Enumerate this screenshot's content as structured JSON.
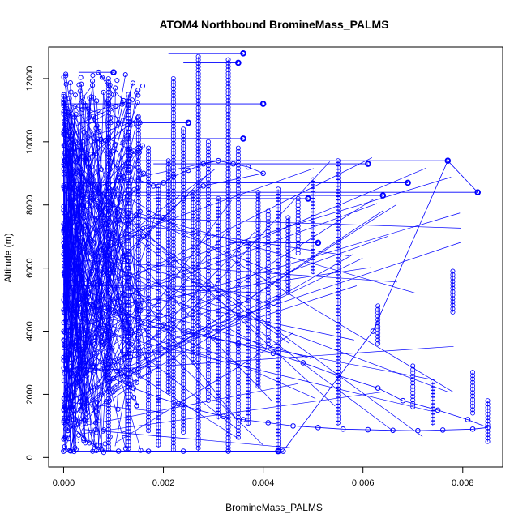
{
  "chart_data": {
    "type": "scatter",
    "title": "ATOM4 Northbound BromineMass_PALMS",
    "xlabel": "BromineMass_PALMS",
    "ylabel": "Altitude (m)",
    "xlim": [
      -0.0003,
      0.0088
    ],
    "ylim": [
      -300,
      13000
    ],
    "x_ticks": [
      0.0,
      0.002,
      0.004,
      0.006,
      0.008
    ],
    "x_tick_labels": [
      "0.000",
      "0.002",
      "0.004",
      "0.006",
      "0.008"
    ],
    "y_ticks": [
      0,
      2000,
      4000,
      6000,
      8000,
      10000,
      12000
    ],
    "y_tick_labels": [
      "0",
      "2000",
      "4000",
      "6000",
      "8000",
      "10000",
      "12000"
    ],
    "color": "#0000ff",
    "marker": "open-circle",
    "connected": true,
    "grid": false,
    "series": [
      {
        "x": [
          0.0,
          0.0001,
          0.0002,
          0.0001,
          0.0003,
          0.0002,
          0.0004,
          0.0005,
          0.0003,
          0.0006,
          0.0004,
          0.0007,
          0.0005,
          0.0008,
          0.0006,
          0.0009,
          0.001,
          0.0007,
          0.0012,
          0.0011,
          0.0009,
          0.0014,
          0.0013,
          0.0016,
          0.0015,
          0.0018,
          0.002,
          0.0022,
          0.0025,
          0.0028,
          0.0031,
          0.0034,
          0.0037,
          0.004,
          0.0028,
          0.0024,
          0.002,
          0.0016,
          0.0012,
          0.0008,
          0.0005,
          0.0002,
          0.0001,
          0.0003,
          0.0006,
          0.001,
          0.0014,
          0.0019,
          0.0023,
          0.0027,
          0.0032,
          0.0036,
          0.0041,
          0.0046,
          0.0051,
          0.0056,
          0.0061,
          0.0066,
          0.0071,
          0.0076,
          0.0082,
          0.0085,
          0.0081,
          0.0075,
          0.0068,
          0.0063,
          0.0055,
          0.0048,
          0.0042,
          0.0035,
          0.003,
          0.0025,
          0.002,
          0.0015,
          0.001,
          0.0006,
          0.0003,
          0.0001,
          0.0002,
          0.0004,
          0.0007,
          0.0011,
          0.0017,
          0.0024,
          0.0033,
          0.0044,
          0.0062,
          0.0077,
          0.0083
        ],
        "y": [
          200,
          600,
          1200,
          2000,
          2800,
          3600,
          4400,
          5200,
          6000,
          6800,
          7600,
          8400,
          9200,
          10000,
          10800,
          11200,
          11500,
          12200,
          11300,
          10600,
          10100,
          9700,
          9300,
          9000,
          8800,
          8600,
          8700,
          8900,
          9100,
          9300,
          9400,
          9300,
          9200,
          9000,
          8600,
          8200,
          7600,
          7000,
          6400,
          5800,
          5200,
          4600,
          4000,
          3400,
          2900,
          2500,
          2200,
          1900,
          1700,
          1500,
          1300,
          1200,
          1100,
          1000,
          950,
          900,
          880,
          860,
          850,
          870,
          900,
          950,
          1200,
          1500,
          1800,
          2200,
          2600,
          3000,
          3300,
          3600,
          3800,
          4000,
          4200,
          4400,
          4600,
          4800,
          5000,
          3000,
          1500,
          600,
          250,
          200,
          200,
          200,
          200,
          200,
          4000,
          9400,
          8400
        ]
      }
    ],
    "vertical_profiles": [
      {
        "x": 0.0009,
        "y_range": [
          200,
          12000
        ]
      },
      {
        "x": 0.0013,
        "y_range": [
          200,
          11500
        ]
      },
      {
        "x": 0.0015,
        "y_range": [
          2500,
          10800
        ]
      },
      {
        "x": 0.0017,
        "y_range": [
          800,
          9800
        ]
      },
      {
        "x": 0.0019,
        "y_range": [
          300,
          8600
        ]
      },
      {
        "x": 0.0021,
        "y_range": [
          2000,
          9400
        ]
      },
      {
        "x": 0.0022,
        "y_range": [
          200,
          12000
        ]
      },
      {
        "x": 0.0024,
        "y_range": [
          800,
          10400
        ]
      },
      {
        "x": 0.0026,
        "y_range": [
          3000,
          8400
        ]
      },
      {
        "x": 0.0027,
        "y_range": [
          200,
          12700
        ]
      },
      {
        "x": 0.0029,
        "y_range": [
          1800,
          10000
        ]
      },
      {
        "x": 0.0031,
        "y_range": [
          1200,
          8200
        ]
      },
      {
        "x": 0.0033,
        "y_range": [
          200,
          12600
        ]
      },
      {
        "x": 0.0035,
        "y_range": [
          600,
          9800
        ]
      },
      {
        "x": 0.0037,
        "y_range": [
          1000,
          6800
        ]
      },
      {
        "x": 0.0039,
        "y_range": [
          2200,
          8400
        ]
      },
      {
        "x": 0.0041,
        "y_range": [
          3400,
          7800
        ]
      },
      {
        "x": 0.0043,
        "y_range": [
          200,
          8500
        ]
      },
      {
        "x": 0.0045,
        "y_range": [
          5200,
          7600
        ]
      },
      {
        "x": 0.0047,
        "y_range": [
          6400,
          8200
        ]
      },
      {
        "x": 0.005,
        "y_range": [
          5800,
          8800
        ]
      },
      {
        "x": 0.0055,
        "y_range": [
          1000,
          9400
        ]
      },
      {
        "x": 0.0063,
        "y_range": [
          3600,
          4800
        ]
      },
      {
        "x": 0.007,
        "y_range": [
          1500,
          2900
        ]
      },
      {
        "x": 0.0074,
        "y_range": [
          1000,
          2400
        ]
      },
      {
        "x": 0.0078,
        "y_range": [
          4600,
          5900
        ]
      },
      {
        "x": 0.0082,
        "y_range": [
          1400,
          2700
        ]
      },
      {
        "x": 0.0085,
        "y_range": [
          500,
          1800
        ]
      }
    ],
    "horizontal_runs": [
      {
        "y": 12800,
        "x_range": [
          0.0021,
          0.0036
        ]
      },
      {
        "y": 12500,
        "x_range": [
          0.0024,
          0.0035
        ]
      },
      {
        "y": 12200,
        "x_range": [
          0.0003,
          0.001
        ]
      },
      {
        "y": 11200,
        "x_range": [
          0.0,
          0.004
        ]
      },
      {
        "y": 10600,
        "x_range": [
          0.0003,
          0.0025
        ]
      },
      {
        "y": 10100,
        "x_range": [
          0.0008,
          0.0036
        ]
      },
      {
        "y": 9400,
        "x_range": [
          0.0,
          0.0077
        ]
      },
      {
        "y": 9300,
        "x_range": [
          0.0018,
          0.0061
        ]
      },
      {
        "y": 8700,
        "x_range": [
          0.0,
          0.0069
        ]
      },
      {
        "y": 8400,
        "x_range": [
          0.0003,
          0.0083
        ]
      },
      {
        "y": 8300,
        "x_range": [
          0.0006,
          0.0064
        ]
      },
      {
        "y": 8200,
        "x_range": [
          0.0018,
          0.0049
        ]
      },
      {
        "y": 6800,
        "x_range": [
          0.0033,
          0.0051
        ]
      },
      {
        "y": 200,
        "x_range": [
          0.0002,
          0.0043
        ]
      }
    ]
  }
}
